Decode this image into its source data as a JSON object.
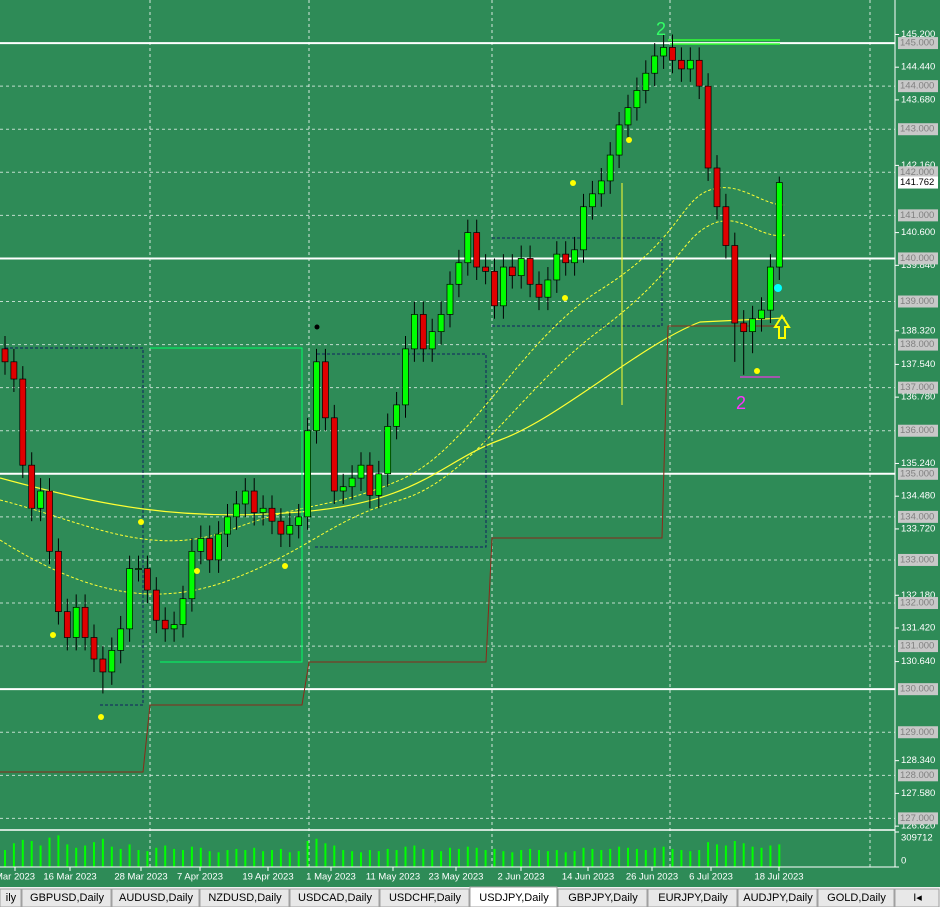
{
  "chart_data": {
    "type": "candlestick",
    "x_labels": [
      "Mar 2023",
      "16 Mar 2023",
      "28 Mar 2023",
      "7 Apr 2023",
      "19 Apr 2023",
      "1 May 2023",
      "11 May 2023",
      "23 May 2023",
      "2 Jun 2023",
      "14 Jun 2023",
      "26 Jun 2023",
      "6 Jul 2023",
      "18 Jul 2023"
    ],
    "open": [
      137.9,
      137.6,
      137.2,
      135.2,
      134.2,
      134.6,
      133.2,
      131.8,
      131.2,
      131.9,
      131.2,
      130.7,
      130.4,
      130.9,
      131.4,
      132.8,
      132.8,
      132.3,
      131.6,
      131.4,
      131.5,
      132.1,
      133.2,
      133.5,
      133.0,
      133.6,
      134.0,
      134.3,
      134.6,
      134.1,
      134.2,
      133.9,
      133.6,
      133.8,
      134.0,
      136.0,
      137.6,
      136.3,
      134.6,
      134.7,
      134.9,
      135.2,
      134.5,
      135.0,
      136.1,
      136.6,
      137.9,
      138.7,
      137.9,
      138.3,
      138.7,
      139.4,
      139.9,
      140.6,
      139.8,
      139.7,
      138.9,
      139.8,
      139.6,
      140.0,
      139.4,
      139.1,
      139.5,
      140.1,
      139.9,
      140.2,
      141.2,
      141.5,
      141.8,
      142.4,
      143.1,
      143.5,
      143.9,
      144.3,
      144.7,
      144.9,
      144.6,
      144.4,
      144.6,
      144.0,
      142.1,
      141.2,
      140.3,
      138.5,
      138.3,
      138.6,
      138.8,
      139.8
    ],
    "high": [
      138.2,
      137.9,
      137.5,
      135.5,
      134.9,
      134.9,
      133.5,
      132.1,
      132.2,
      132.2,
      131.5,
      131.0,
      131.2,
      131.7,
      133.1,
      133.1,
      133.1,
      132.6,
      131.9,
      131.8,
      132.4,
      133.5,
      133.8,
      133.8,
      133.9,
      134.3,
      134.6,
      134.9,
      134.9,
      134.5,
      134.5,
      134.2,
      134.1,
      134.3,
      136.3,
      137.9,
      137.9,
      136.6,
      135.0,
      135.2,
      135.5,
      135.5,
      135.3,
      136.4,
      136.9,
      138.2,
      139.0,
      139.0,
      138.6,
      139.0,
      139.7,
      140.2,
      140.9,
      140.9,
      140.1,
      140.0,
      140.1,
      140.1,
      140.3,
      140.3,
      139.7,
      139.8,
      140.4,
      140.4,
      140.5,
      141.5,
      141.8,
      142.1,
      142.7,
      143.4,
      143.8,
      144.2,
      144.6,
      145.0,
      145.2,
      145.2,
      144.9,
      144.9,
      144.9,
      144.3,
      142.4,
      141.5,
      140.6,
      138.8,
      138.9,
      139.1,
      140.1,
      141.9
    ],
    "low": [
      137.3,
      136.9,
      134.9,
      133.9,
      133.9,
      132.9,
      131.5,
      130.9,
      130.9,
      130.9,
      130.4,
      129.9,
      130.1,
      130.6,
      131.1,
      132.5,
      132.0,
      131.3,
      131.1,
      131.1,
      131.2,
      131.8,
      132.9,
      132.7,
      132.7,
      133.3,
      133.7,
      134.0,
      133.8,
      133.8,
      133.6,
      133.3,
      133.3,
      133.5,
      133.7,
      135.7,
      136.0,
      134.3,
      134.3,
      134.4,
      134.6,
      134.2,
      134.2,
      134.7,
      135.8,
      136.3,
      137.6,
      137.6,
      137.6,
      138.0,
      138.4,
      139.1,
      139.6,
      139.5,
      139.4,
      138.6,
      138.6,
      139.3,
      139.3,
      139.1,
      138.8,
      138.8,
      139.2,
      139.6,
      139.6,
      139.9,
      140.9,
      141.2,
      141.5,
      142.1,
      142.8,
      143.2,
      143.6,
      144.0,
      144.4,
      144.3,
      144.1,
      144.1,
      143.7,
      141.8,
      140.9,
      140.0,
      137.6,
      137.3,
      137.8,
      138.3,
      138.5,
      139.5
    ],
    "close": [
      137.6,
      137.2,
      135.2,
      134.2,
      134.6,
      133.2,
      131.8,
      131.2,
      131.9,
      131.2,
      130.7,
      130.4,
      130.9,
      131.4,
      132.8,
      132.8,
      132.3,
      131.6,
      131.4,
      131.5,
      132.1,
      133.2,
      133.5,
      133.0,
      133.6,
      134.0,
      134.3,
      134.6,
      134.1,
      134.2,
      133.9,
      133.6,
      133.8,
      134.0,
      136.0,
      137.6,
      136.3,
      134.6,
      134.7,
      134.9,
      135.2,
      134.5,
      135.0,
      136.1,
      136.6,
      137.9,
      138.7,
      137.9,
      138.3,
      138.7,
      139.4,
      139.9,
      140.6,
      139.8,
      139.7,
      138.9,
      139.8,
      139.6,
      140.0,
      139.4,
      139.1,
      139.5,
      140.1,
      139.9,
      140.2,
      141.2,
      141.5,
      141.8,
      142.4,
      143.1,
      143.5,
      143.9,
      144.3,
      144.7,
      144.9,
      144.6,
      144.4,
      144.6,
      144.0,
      142.1,
      141.2,
      140.3,
      138.5,
      138.3,
      138.6,
      138.8,
      139.8,
      141.762
    ],
    "volume": [
      150000,
      210000,
      240000,
      230000,
      190000,
      260000,
      280000,
      200000,
      170000,
      190000,
      220000,
      250000,
      180000,
      160000,
      200000,
      150000,
      140000,
      170000,
      190000,
      160000,
      150000,
      180000,
      170000,
      140000,
      130000,
      150000,
      160000,
      150000,
      170000,
      140000,
      150000,
      160000,
      130000,
      140000,
      230000,
      250000,
      210000,
      190000,
      150000,
      140000,
      130000,
      150000,
      140000,
      160000,
      150000,
      180000,
      190000,
      160000,
      150000,
      140000,
      170000,
      160000,
      180000,
      170000,
      150000,
      160000,
      140000,
      130000,
      150000,
      160000,
      150000,
      140000,
      150000,
      130000,
      140000,
      170000,
      160000,
      150000,
      160000,
      180000,
      170000,
      160000,
      150000,
      170000,
      180000,
      160000,
      150000,
      140000,
      150000,
      220000,
      200000,
      190000,
      230000,
      210000,
      180000,
      170000,
      190000,
      200000
    ],
    "bull_color": "#00ff00",
    "bear_color": "#e00000",
    "volume_color": "#00ff00",
    "ylim": [
      126.8,
      146.0
    ],
    "yticks": [
      {
        "value": 145.2,
        "label": "145.200"
      },
      {
        "value": 144.44,
        "label": "144.440"
      },
      {
        "value": 143.68,
        "label": "143.680"
      },
      {
        "value": 142.16,
        "label": "142.160"
      },
      {
        "value": 140.6,
        "label": "140.600"
      },
      {
        "value": 139.84,
        "label": "139.840"
      },
      {
        "value": 138.32,
        "label": "138.320"
      },
      {
        "value": 137.54,
        "label": "137.540"
      },
      {
        "value": 136.78,
        "label": "136.780"
      },
      {
        "value": 135.24,
        "label": "135.240"
      },
      {
        "value": 134.48,
        "label": "134.480"
      },
      {
        "value": 133.72,
        "label": "133.720"
      },
      {
        "value": 132.18,
        "label": "132.180"
      },
      {
        "value": 131.42,
        "label": "131.420"
      },
      {
        "value": 130.64,
        "label": "130.640"
      },
      {
        "value": 128.34,
        "label": "128.340"
      },
      {
        "value": 127.58,
        "label": "127.580"
      },
      {
        "value": 126.82,
        "label": "126.820"
      }
    ],
    "levels": [
      {
        "value": 145,
        "label": "145.000"
      },
      {
        "value": 144,
        "label": "144.000"
      },
      {
        "value": 143,
        "label": "143.000"
      },
      {
        "value": 142,
        "label": "142.000"
      },
      {
        "value": 141,
        "label": "141.000"
      },
      {
        "value": 140,
        "label": "140.000"
      },
      {
        "value": 139,
        "label": "139.000"
      },
      {
        "value": 138,
        "label": "138.000"
      },
      {
        "value": 137,
        "label": "137.000"
      },
      {
        "value": 136,
        "label": "136.000"
      },
      {
        "value": 135,
        "label": "135.000"
      },
      {
        "value": 134,
        "label": "134.000"
      },
      {
        "value": 133,
        "label": "133.000"
      },
      {
        "value": 132,
        "label": "132.000"
      },
      {
        "value": 131,
        "label": "131.000"
      },
      {
        "value": 130,
        "label": "130.000"
      },
      {
        "value": 129,
        "label": "129.000"
      },
      {
        "value": 128,
        "label": "128.000"
      },
      {
        "value": 127,
        "label": "127.000"
      }
    ],
    "current_price": {
      "value": 141.762,
      "label": "141.762"
    },
    "volume_lim": [
      0,
      309712
    ],
    "volume_ticks": [
      {
        "value": 309712,
        "label": "309712"
      },
      0
    ],
    "annotations": [
      {
        "text": "2",
        "color": "#33ff66"
      },
      {
        "text": "2",
        "color": "#ff33ff"
      }
    ]
  },
  "tabs": [
    "ily",
    "GBPUSD,Daily",
    "AUDUSD,Daily",
    "NZDUSD,Daily",
    "USDCAD,Daily",
    "USDCHF,Daily",
    "USDJPY,Daily",
    "GBPJPY,Daily",
    "EURJPY,Daily",
    "AUDJPY,Daily",
    "GOLD,Daily",
    "I◂"
  ],
  "active_tab": "USDJPY,Daily"
}
